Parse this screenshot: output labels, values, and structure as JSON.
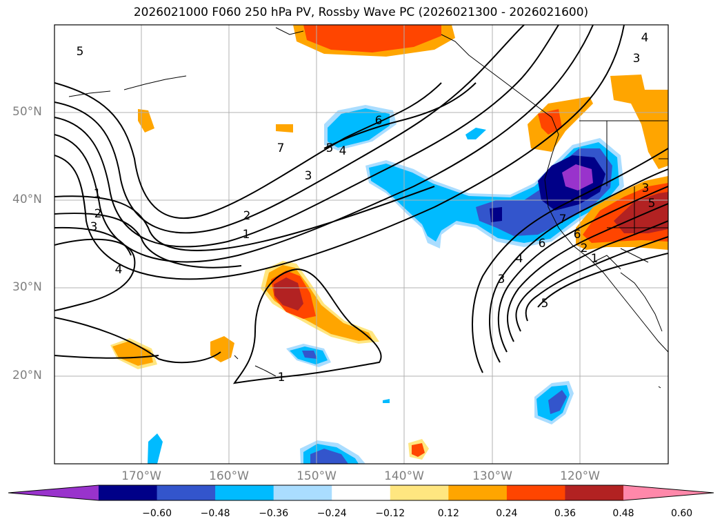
{
  "title": "2026021000 F060 250 hPa PV, Rossby Wave PC (2026021300 - 2026021600)",
  "lat_labels": [
    "50°N",
    "40°N",
    "30°N",
    "20°N"
  ],
  "lon_labels": [
    "170°W",
    "160°W",
    "150°W",
    "140°W",
    "130°W",
    "120°W"
  ],
  "colorbar": {
    "ticks": [
      "−0.60",
      "−0.48",
      "−0.36",
      "−0.24",
      "−0.12",
      "0.12",
      "0.24",
      "0.36",
      "0.48",
      "0.60"
    ],
    "colors": [
      "#9933cc",
      "#000088",
      "#3355cc",
      "#00bbff",
      "#aaddff",
      "#ffffff",
      "#ffe680",
      "#ffa500",
      "#ff4500",
      "#b22222",
      "#ff88aa"
    ]
  },
  "contour_labels": [
    "5",
    "4",
    "6",
    "7",
    "5",
    "4",
    "3",
    "1",
    "2",
    "3",
    "2",
    "1",
    "4",
    "1",
    "3",
    "6",
    "5",
    "4",
    "3",
    "6",
    "7",
    "2",
    "1",
    "3",
    "5"
  ],
  "colors": {
    "land_outline": "#000000",
    "grid": "#b0b0b0"
  }
}
